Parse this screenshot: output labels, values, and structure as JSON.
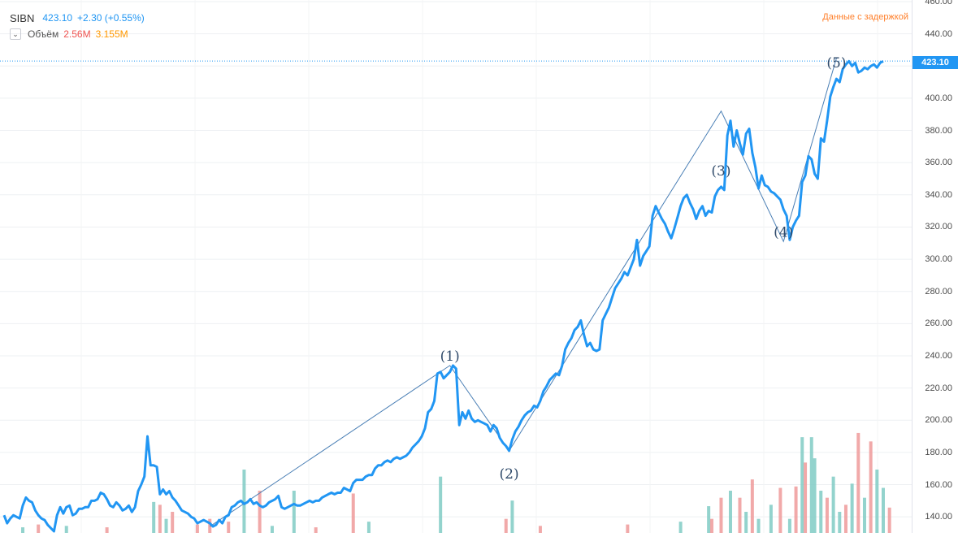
{
  "header": {
    "symbol": "SIBN",
    "last_price": "423.10",
    "change": "+2.30 (+0.55%)",
    "collapse_icon": "chevron-down-icon",
    "volume_label": "Объём",
    "volume_value_1": "2.56M",
    "volume_value_2": "3.155M",
    "delay_note": "Данные с задержкой"
  },
  "price_badge": "423.10",
  "colors": {
    "line": "#2196f3",
    "wave_line": "#4a7fb5",
    "volume_up": "#80cbc4",
    "volume_down": "#ef9a9a",
    "delay_note": "#ff7f2a"
  },
  "chart_data": {
    "type": "line",
    "series": [
      {
        "values": [
          141,
          136,
          139,
          141,
          140,
          139,
          147,
          152,
          150,
          149,
          144,
          141,
          139,
          138,
          135,
          133,
          131,
          141,
          146,
          142,
          146,
          147,
          141,
          142,
          145,
          145,
          146,
          146,
          150,
          150,
          151,
          155,
          154,
          151,
          147,
          146,
          149,
          147,
          144,
          145,
          147,
          143,
          146,
          156,
          160,
          165,
          190,
          172,
          172,
          171,
          154,
          157,
          154,
          156,
          152,
          150,
          147,
          144,
          143,
          142,
          140,
          139,
          136,
          137,
          138,
          137,
          136,
          134,
          135,
          138,
          136,
          140,
          141,
          146,
          147,
          149,
          150,
          148,
          149,
          151,
          148,
          149,
          147,
          146,
          147,
          149,
          150,
          151,
          153,
          146,
          145,
          146,
          147,
          148,
          147,
          147,
          148,
          149,
          150,
          149,
          150,
          150,
          152,
          153,
          154,
          155,
          154,
          155,
          155,
          158,
          157,
          156,
          161,
          163,
          163,
          163,
          165,
          166,
          166,
          170,
          172,
          172,
          174,
          175,
          174,
          176,
          177,
          176,
          177,
          178,
          180,
          183,
          185,
          187,
          190,
          195,
          205,
          207,
          212,
          229,
          230,
          226,
          228,
          230,
          234,
          232,
          197,
          205,
          201,
          206,
          201,
          199,
          200,
          199,
          198,
          197,
          193,
          197,
          195,
          189,
          186,
          184,
          181,
          188,
          193,
          196,
          200,
          203,
          205,
          206,
          209,
          208,
          212,
          218,
          221,
          225,
          227,
          229,
          228,
          234,
          244,
          248,
          251,
          256,
          258,
          262,
          253,
          246,
          248,
          244,
          243,
          244,
          262,
          266,
          270,
          276,
          282,
          285,
          288,
          292,
          290,
          295,
          300,
          312,
          296,
          302,
          305,
          308,
          327,
          333,
          329,
          325,
          322,
          317,
          313,
          319,
          326,
          333,
          338,
          340,
          335,
          331,
          325,
          330,
          333,
          327,
          330,
          329,
          339,
          343,
          345,
          343,
          377,
          386,
          370,
          380,
          372,
          365,
          378,
          381,
          366,
          357,
          344,
          352,
          346,
          345,
          342,
          341,
          339,
          337,
          331,
          327,
          312,
          320,
          324,
          327,
          348,
          352,
          364,
          362,
          353,
          350,
          375,
          373,
          386,
          401,
          407,
          412,
          410,
          418,
          421,
          423,
          420,
          422,
          416,
          417,
          419,
          418,
          420,
          421,
          419,
          422,
          423
        ]
      }
    ],
    "ylim": [
      130,
      461
    ],
    "yticks": [
      "140.00",
      "160.00",
      "180.00",
      "200.00",
      "220.00",
      "240.00",
      "260.00",
      "280.00",
      "300.00",
      "320.00",
      "340.00",
      "360.00",
      "380.00",
      "400.00",
      "420.00",
      "440.00",
      "460.00"
    ],
    "volume_bars": [
      {
        "i": 6,
        "v": 0.4,
        "up": true
      },
      {
        "i": 11,
        "v": 0.6,
        "up": false
      },
      {
        "i": 20,
        "v": 0.5,
        "up": true
      },
      {
        "i": 33,
        "v": 0.4,
        "up": false
      },
      {
        "i": 48,
        "v": 2.2,
        "up": true
      },
      {
        "i": 50,
        "v": 2.0,
        "up": false
      },
      {
        "i": 52,
        "v": 1.0,
        "up": true
      },
      {
        "i": 54,
        "v": 1.5,
        "up": false
      },
      {
        "i": 62,
        "v": 0.6,
        "up": false
      },
      {
        "i": 66,
        "v": 1.0,
        "up": false
      },
      {
        "i": 72,
        "v": 0.8,
        "up": false
      },
      {
        "i": 77,
        "v": 4.5,
        "up": true
      },
      {
        "i": 82,
        "v": 3.0,
        "up": false
      },
      {
        "i": 86,
        "v": 0.5,
        "up": true
      },
      {
        "i": 93,
        "v": 3.0,
        "up": true
      },
      {
        "i": 100,
        "v": 0.4,
        "up": false
      },
      {
        "i": 112,
        "v": 2.8,
        "up": false
      },
      {
        "i": 117,
        "v": 0.8,
        "up": true
      },
      {
        "i": 140,
        "v": 4.0,
        "up": true
      },
      {
        "i": 161,
        "v": 1.0,
        "up": false
      },
      {
        "i": 163,
        "v": 2.3,
        "up": true
      },
      {
        "i": 172,
        "v": 0.5,
        "up": false
      },
      {
        "i": 200,
        "v": 0.6,
        "up": false
      },
      {
        "i": 217,
        "v": 0.8,
        "up": true
      },
      {
        "i": 226,
        "v": 1.9,
        "up": true
      },
      {
        "i": 227,
        "v": 1.0,
        "up": false
      },
      {
        "i": 230,
        "v": 2.5,
        "up": false
      },
      {
        "i": 233,
        "v": 3.0,
        "up": true
      },
      {
        "i": 236,
        "v": 2.5,
        "up": false
      },
      {
        "i": 238,
        "v": 1.5,
        "up": true
      },
      {
        "i": 240,
        "v": 3.8,
        "up": false
      },
      {
        "i": 242,
        "v": 1.0,
        "up": true
      },
      {
        "i": 246,
        "v": 2.0,
        "up": true
      },
      {
        "i": 249,
        "v": 3.2,
        "up": false
      },
      {
        "i": 252,
        "v": 1.0,
        "up": true
      },
      {
        "i": 254,
        "v": 3.3,
        "up": false
      },
      {
        "i": 256,
        "v": 6.8,
        "up": true
      },
      {
        "i": 257,
        "v": 5.0,
        "up": false
      },
      {
        "i": 259,
        "v": 6.8,
        "up": true
      },
      {
        "i": 260,
        "v": 5.3,
        "up": true
      },
      {
        "i": 262,
        "v": 3.0,
        "up": true
      },
      {
        "i": 264,
        "v": 2.5,
        "up": false
      },
      {
        "i": 266,
        "v": 4.0,
        "up": true
      },
      {
        "i": 268,
        "v": 1.5,
        "up": true
      },
      {
        "i": 270,
        "v": 2.0,
        "up": false
      },
      {
        "i": 272,
        "v": 3.5,
        "up": true
      },
      {
        "i": 274,
        "v": 7.1,
        "up": false
      },
      {
        "i": 276,
        "v": 2.5,
        "up": true
      },
      {
        "i": 278,
        "v": 6.5,
        "up": false
      },
      {
        "i": 280,
        "v": 4.5,
        "up": true
      },
      {
        "i": 282,
        "v": 3.2,
        "up": true
      },
      {
        "i": 284,
        "v": 1.8,
        "up": false
      }
    ],
    "annotations": [
      {
        "label": "(1)",
        "i": 143
      },
      {
        "label": "(2)",
        "i": 162
      },
      {
        "label": "(3)",
        "i": 230
      },
      {
        "label": "(4)",
        "i": 250
      },
      {
        "label": "(5)",
        "i": 267
      }
    ],
    "wave_points": [
      {
        "i": 66,
        "y": 134
      },
      {
        "i": 143,
        "y": 234
      },
      {
        "i": 162,
        "y": 181
      },
      {
        "i": 230,
        "y": 392
      },
      {
        "i": 250,
        "y": 311
      },
      {
        "i": 267,
        "y": 425
      }
    ],
    "last_value": 423.1
  }
}
